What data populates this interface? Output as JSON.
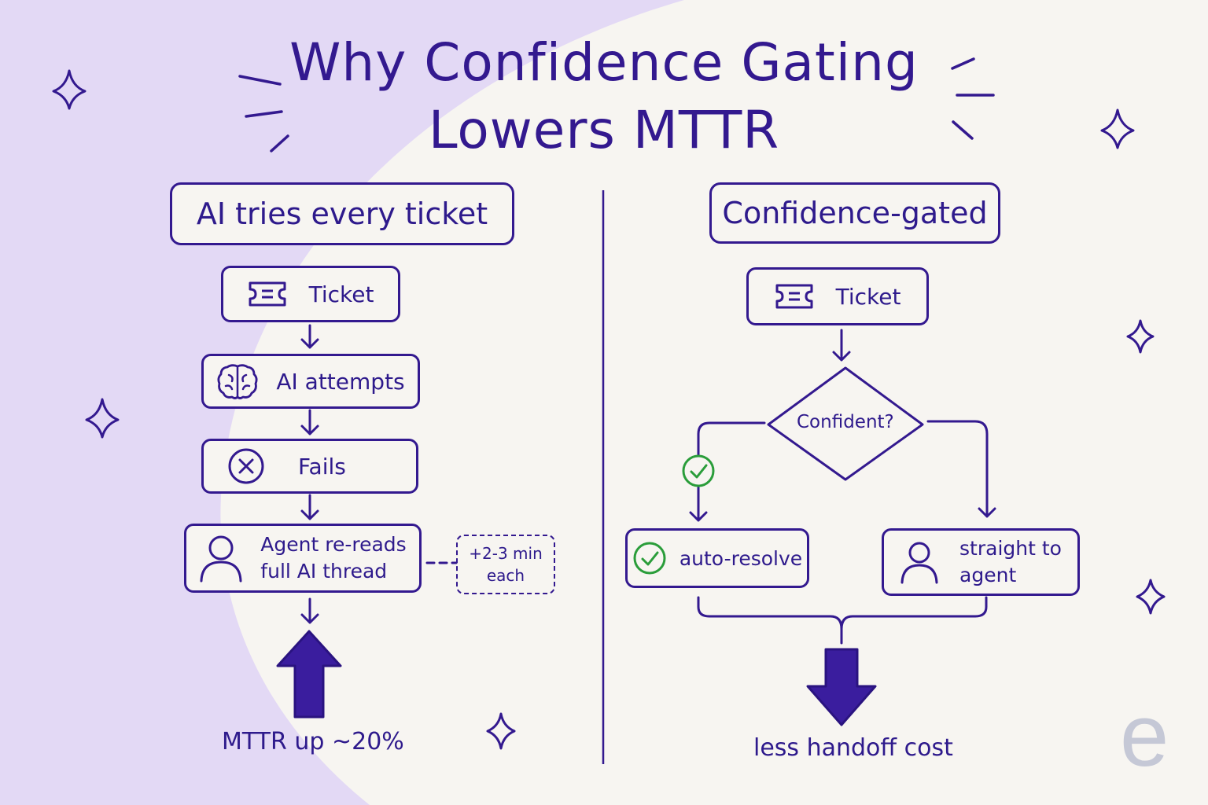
{
  "title": {
    "line1": "Why Confidence Gating",
    "line2": "Lowers MTTR"
  },
  "left_panel": {
    "heading": "AI tries every ticket",
    "steps": [
      {
        "label": "Ticket",
        "icon": "ticket-icon"
      },
      {
        "label": "AI attempts",
        "icon": "brain-icon"
      },
      {
        "label": "Fails",
        "icon": "x-circle-icon"
      },
      {
        "label": "Agent re-reads\nfull AI thread",
        "icon": "person-icon"
      }
    ],
    "side_note": "+2-3 min\neach",
    "outcome": "MTTR up ~20%",
    "outcome_arrow": "up-arrow-icon"
  },
  "right_panel": {
    "heading": "Confidence-gated",
    "start": {
      "label": "Ticket",
      "icon": "ticket-icon"
    },
    "decision": "Confident?",
    "yes_branch": {
      "label": "auto-resolve",
      "icon": "check-circle-icon"
    },
    "no_branch": {
      "label": "straight to\nagent",
      "icon": "person-icon"
    },
    "outcome": "less handoff cost",
    "outcome_arrow": "down-arrow-icon"
  },
  "colors": {
    "ink": "#33198f",
    "check": "#2a9d3a",
    "lavender": "#e3d9f5",
    "background": "#f7f5f1",
    "logo": "#c5c8d6"
  },
  "logo": "e"
}
